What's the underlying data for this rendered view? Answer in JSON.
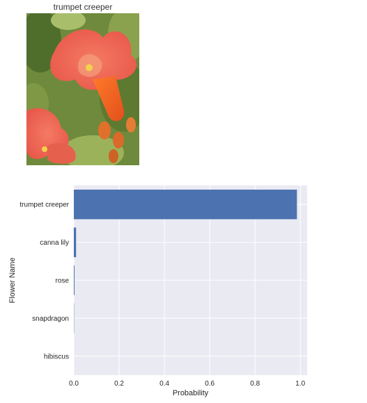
{
  "image_panel": {
    "title": "trumpet creeper"
  },
  "chart_data": {
    "type": "bar",
    "orientation": "horizontal",
    "categories": [
      "trumpet creeper",
      "canna lily",
      "rose",
      "snapdragon",
      "hibiscus"
    ],
    "values": [
      0.985,
      0.01,
      0.003,
      0.001,
      0.0
    ],
    "xlabel": "Probability",
    "ylabel": "Flower Name",
    "xlim": [
      0,
      1.03
    ],
    "xticks": [
      0.0,
      0.2,
      0.4,
      0.6,
      0.8,
      1.0
    ],
    "xtick_labels": [
      "0.0",
      "0.2",
      "0.4",
      "0.6",
      "0.8",
      "1.0"
    ],
    "grid": true,
    "background_color": "#eaeaf2",
    "bar_color": "#4c72b0"
  }
}
